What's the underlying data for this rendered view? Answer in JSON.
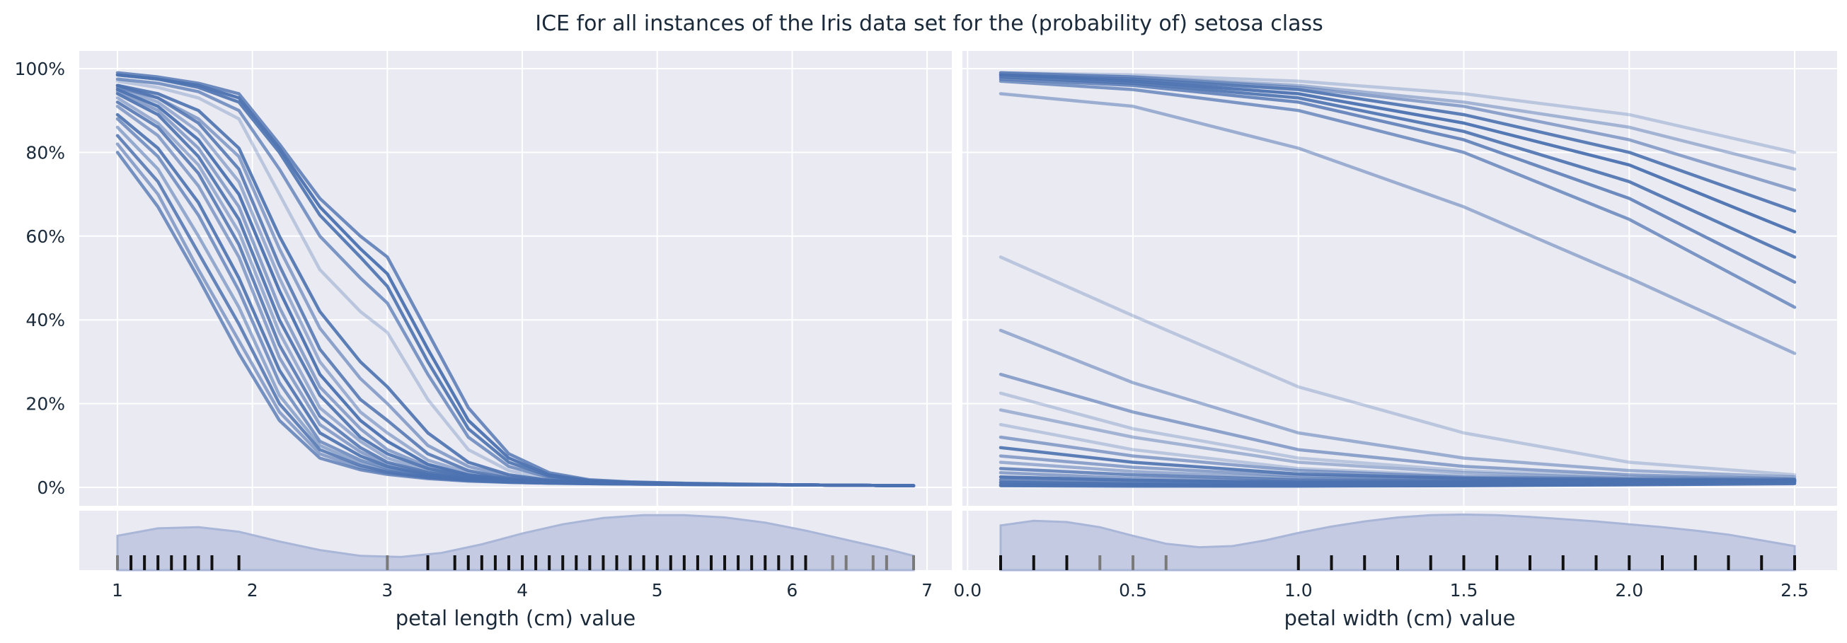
{
  "title": "ICE for all instances of the Iris data set for the (probability of) setosa class",
  "colors": {
    "background": "#eaeaf2",
    "grid": "#ffffff",
    "line": "#4c72b0",
    "kde_fill": "#c3cae1",
    "rug_dark": "#111111",
    "rug_light": "#7a7a7a"
  },
  "chart_data": [
    {
      "type": "line",
      "subtype": "ice",
      "xlabel": "petal length (cm) value",
      "ylabel": "",
      "xlim": [
        1,
        6.9
      ],
      "ylim": [
        0,
        1
      ],
      "y_ticks": [
        "0%",
        "20%",
        "40%",
        "60%",
        "80%",
        "100%"
      ],
      "y_tick_values": [
        0,
        0.2,
        0.4,
        0.6,
        0.8,
        1.0
      ],
      "x_ticks": [
        "1",
        "2",
        "3",
        "4",
        "5",
        "6",
        "7"
      ],
      "x_tick_values": [
        1,
        2,
        3,
        4,
        5,
        6,
        7
      ],
      "x": [
        1.0,
        1.3,
        1.6,
        1.9,
        2.2,
        2.5,
        2.8,
        3.0,
        3.3,
        3.6,
        3.9,
        4.2,
        4.5,
        4.8,
        5.2,
        5.6,
        6.0,
        6.4,
        6.9
      ],
      "series": [
        {
          "values": [
            0.99,
            0.98,
            0.965,
            0.94,
            0.82,
            0.69,
            0.6,
            0.55,
            0.37,
            0.19,
            0.08,
            0.035,
            0.018,
            0.013,
            0.01,
            0.008,
            0.006,
            0.005,
            0.004
          ],
          "opacity": 0.8
        },
        {
          "values": [
            0.985,
            0.975,
            0.96,
            0.93,
            0.81,
            0.67,
            0.57,
            0.51,
            0.33,
            0.16,
            0.07,
            0.03,
            0.016,
            0.012,
            0.009,
            0.007,
            0.006,
            0.005,
            0.004
          ],
          "opacity": 0.95
        },
        {
          "values": [
            0.985,
            0.975,
            0.955,
            0.92,
            0.8,
            0.65,
            0.55,
            0.48,
            0.3,
            0.14,
            0.06,
            0.027,
            0.015,
            0.011,
            0.009,
            0.007,
            0.006,
            0.005,
            0.004
          ],
          "opacity": 0.9
        },
        {
          "values": [
            0.975,
            0.965,
            0.945,
            0.9,
            0.76,
            0.6,
            0.5,
            0.44,
            0.27,
            0.12,
            0.05,
            0.024,
            0.014,
            0.011,
            0.008,
            0.007,
            0.006,
            0.005,
            0.004
          ],
          "opacity": 0.7
        },
        {
          "values": [
            0.97,
            0.955,
            0.93,
            0.88,
            0.7,
            0.52,
            0.42,
            0.37,
            0.21,
            0.09,
            0.04,
            0.02,
            0.013,
            0.01,
            0.008,
            0.007,
            0.006,
            0.005,
            0.004
          ],
          "opacity": 0.3
        },
        {
          "values": [
            0.96,
            0.94,
            0.9,
            0.81,
            0.6,
            0.42,
            0.3,
            0.24,
            0.13,
            0.06,
            0.03,
            0.017,
            0.012,
            0.01,
            0.008,
            0.007,
            0.006,
            0.005,
            0.004
          ],
          "opacity": 0.9
        },
        {
          "values": [
            0.955,
            0.93,
            0.88,
            0.79,
            0.57,
            0.38,
            0.26,
            0.2,
            0.1,
            0.05,
            0.026,
            0.016,
            0.012,
            0.01,
            0.008,
            0.007,
            0.006,
            0.005,
            0.004
          ],
          "opacity": 0.6
        },
        {
          "values": [
            0.96,
            0.93,
            0.87,
            0.76,
            0.53,
            0.33,
            0.21,
            0.16,
            0.08,
            0.04,
            0.022,
            0.015,
            0.011,
            0.009,
            0.008,
            0.007,
            0.006,
            0.005,
            0.004
          ],
          "opacity": 0.85
        },
        {
          "values": [
            0.955,
            0.92,
            0.85,
            0.73,
            0.5,
            0.3,
            0.18,
            0.13,
            0.065,
            0.035,
            0.02,
            0.014,
            0.011,
            0.009,
            0.008,
            0.007,
            0.006,
            0.005,
            0.004
          ],
          "opacity": 0.5
        },
        {
          "values": [
            0.95,
            0.91,
            0.83,
            0.7,
            0.47,
            0.27,
            0.16,
            0.11,
            0.055,
            0.03,
            0.019,
            0.013,
            0.01,
            0.009,
            0.008,
            0.007,
            0.006,
            0.005,
            0.004
          ],
          "opacity": 0.95
        },
        {
          "values": [
            0.945,
            0.9,
            0.81,
            0.67,
            0.43,
            0.24,
            0.14,
            0.09,
            0.05,
            0.028,
            0.018,
            0.013,
            0.01,
            0.009,
            0.008,
            0.007,
            0.006,
            0.005,
            0.004
          ],
          "opacity": 0.6
        },
        {
          "values": [
            0.94,
            0.89,
            0.79,
            0.64,
            0.4,
            0.22,
            0.12,
            0.08,
            0.045,
            0.026,
            0.017,
            0.013,
            0.01,
            0.009,
            0.008,
            0.007,
            0.006,
            0.005,
            0.004
          ],
          "opacity": 0.9
        },
        {
          "values": [
            0.93,
            0.87,
            0.77,
            0.61,
            0.37,
            0.19,
            0.11,
            0.07,
            0.04,
            0.024,
            0.016,
            0.012,
            0.01,
            0.009,
            0.008,
            0.007,
            0.006,
            0.005,
            0.004
          ],
          "opacity": 0.5
        },
        {
          "values": [
            0.92,
            0.86,
            0.75,
            0.58,
            0.34,
            0.17,
            0.095,
            0.06,
            0.036,
            0.022,
            0.015,
            0.012,
            0.01,
            0.009,
            0.008,
            0.007,
            0.006,
            0.005,
            0.004
          ],
          "opacity": 0.85
        },
        {
          "values": [
            0.91,
            0.84,
            0.72,
            0.55,
            0.31,
            0.15,
            0.085,
            0.055,
            0.033,
            0.021,
            0.015,
            0.012,
            0.01,
            0.009,
            0.008,
            0.007,
            0.006,
            0.005,
            0.004
          ],
          "opacity": 0.6
        },
        {
          "values": [
            0.89,
            0.81,
            0.68,
            0.5,
            0.28,
            0.13,
            0.075,
            0.05,
            0.03,
            0.02,
            0.014,
            0.011,
            0.01,
            0.009,
            0.008,
            0.007,
            0.006,
            0.005,
            0.004
          ],
          "opacity": 0.9
        },
        {
          "values": [
            0.88,
            0.79,
            0.65,
            0.47,
            0.25,
            0.11,
            0.065,
            0.045,
            0.028,
            0.019,
            0.014,
            0.011,
            0.01,
            0.009,
            0.008,
            0.007,
            0.006,
            0.005,
            0.004
          ],
          "opacity": 0.7
        },
        {
          "values": [
            0.86,
            0.76,
            0.6,
            0.43,
            0.22,
            0.1,
            0.058,
            0.04,
            0.026,
            0.018,
            0.013,
            0.011,
            0.01,
            0.009,
            0.008,
            0.007,
            0.006,
            0.005,
            0.004
          ],
          "opacity": 0.55
        },
        {
          "values": [
            0.84,
            0.73,
            0.56,
            0.39,
            0.2,
            0.09,
            0.052,
            0.037,
            0.024,
            0.017,
            0.013,
            0.011,
            0.009,
            0.008,
            0.007,
            0.006,
            0.006,
            0.005,
            0.004
          ],
          "opacity": 0.85
        },
        {
          "values": [
            0.82,
            0.7,
            0.52,
            0.35,
            0.18,
            0.08,
            0.047,
            0.034,
            0.023,
            0.016,
            0.012,
            0.01,
            0.009,
            0.008,
            0.007,
            0.006,
            0.006,
            0.005,
            0.004
          ],
          "opacity": 0.6
        },
        {
          "values": [
            0.8,
            0.67,
            0.5,
            0.32,
            0.16,
            0.07,
            0.042,
            0.031,
            0.021,
            0.015,
            0.012,
            0.01,
            0.009,
            0.008,
            0.007,
            0.006,
            0.006,
            0.005,
            0.004
          ],
          "opacity": 0.75
        }
      ],
      "kde": {
        "x": [
          1.0,
          1.3,
          1.6,
          1.9,
          2.2,
          2.5,
          2.8,
          3.1,
          3.4,
          3.7,
          4.0,
          4.3,
          4.6,
          4.9,
          5.2,
          5.5,
          5.8,
          6.1,
          6.4,
          6.7,
          6.9
        ],
        "density": [
          0.6,
          0.73,
          0.75,
          0.67,
          0.5,
          0.35,
          0.25,
          0.23,
          0.3,
          0.45,
          0.64,
          0.8,
          0.91,
          0.96,
          0.96,
          0.92,
          0.83,
          0.69,
          0.53,
          0.37,
          0.25
        ]
      },
      "rug": {
        "dark": [
          1.1,
          1.2,
          1.3,
          1.4,
          1.5,
          1.6,
          1.7,
          1.9,
          3.3,
          3.5,
          3.6,
          3.7,
          3.8,
          3.9,
          4.0,
          4.1,
          4.2,
          4.3,
          4.4,
          4.5,
          4.6,
          4.7,
          4.8,
          4.9,
          5.0,
          5.1,
          5.2,
          5.3,
          5.4,
          5.5,
          5.6,
          5.7,
          5.8,
          5.9,
          6.0,
          6.1
        ],
        "light": [
          1.0,
          3.0,
          6.3,
          6.4,
          6.6,
          6.7,
          6.9
        ]
      }
    },
    {
      "type": "line",
      "subtype": "ice",
      "xlabel": "petal width (cm) value",
      "ylabel": "",
      "xlim": [
        0.1,
        2.5
      ],
      "ylim": [
        0,
        1
      ],
      "x_ticks": [
        "0.0",
        "0.5",
        "1.0",
        "1.5",
        "2.0",
        "2.5"
      ],
      "x_tick_values": [
        0.0,
        0.5,
        1.0,
        1.5,
        2.0,
        2.5
      ],
      "x": [
        0.1,
        0.5,
        1.0,
        1.5,
        2.0,
        2.5
      ],
      "series": [
        {
          "values": [
            0.99,
            0.985,
            0.97,
            0.94,
            0.89,
            0.8
          ],
          "opacity": 0.3
        },
        {
          "values": [
            0.99,
            0.98,
            0.96,
            0.92,
            0.86,
            0.76
          ],
          "opacity": 0.45
        },
        {
          "values": [
            0.99,
            0.98,
            0.955,
            0.91,
            0.83,
            0.71
          ],
          "opacity": 0.6
        },
        {
          "values": [
            0.985,
            0.975,
            0.95,
            0.89,
            0.8,
            0.66
          ],
          "opacity": 0.9
        },
        {
          "values": [
            0.985,
            0.97,
            0.94,
            0.87,
            0.77,
            0.61
          ],
          "opacity": 0.95
        },
        {
          "values": [
            0.98,
            0.965,
            0.93,
            0.85,
            0.73,
            0.55
          ],
          "opacity": 0.9
        },
        {
          "values": [
            0.975,
            0.96,
            0.92,
            0.83,
            0.69,
            0.49
          ],
          "opacity": 0.8
        },
        {
          "values": [
            0.97,
            0.95,
            0.9,
            0.8,
            0.64,
            0.43
          ],
          "opacity": 0.7
        },
        {
          "values": [
            0.94,
            0.91,
            0.81,
            0.67,
            0.5,
            0.32
          ],
          "opacity": 0.5
        },
        {
          "values": [
            0.55,
            0.41,
            0.24,
            0.13,
            0.06,
            0.03
          ],
          "opacity": 0.3
        },
        {
          "values": [
            0.375,
            0.25,
            0.13,
            0.07,
            0.04,
            0.025
          ],
          "opacity": 0.5
        },
        {
          "values": [
            0.27,
            0.18,
            0.09,
            0.05,
            0.03,
            0.02
          ],
          "opacity": 0.6
        },
        {
          "values": [
            0.225,
            0.14,
            0.07,
            0.04,
            0.025,
            0.02
          ],
          "opacity": 0.3
        },
        {
          "values": [
            0.185,
            0.12,
            0.06,
            0.035,
            0.022,
            0.018
          ],
          "opacity": 0.45
        },
        {
          "values": [
            0.15,
            0.09,
            0.045,
            0.028,
            0.02,
            0.017
          ],
          "opacity": 0.3
        },
        {
          "values": [
            0.12,
            0.075,
            0.04,
            0.025,
            0.02,
            0.016
          ],
          "opacity": 0.6
        },
        {
          "values": [
            0.095,
            0.06,
            0.032,
            0.022,
            0.018,
            0.016
          ],
          "opacity": 0.9
        },
        {
          "values": [
            0.075,
            0.048,
            0.027,
            0.02,
            0.017,
            0.016
          ],
          "opacity": 0.6
        },
        {
          "values": [
            0.06,
            0.038,
            0.022,
            0.017,
            0.016,
            0.016
          ],
          "opacity": 0.5
        },
        {
          "values": [
            0.045,
            0.03,
            0.018,
            0.015,
            0.015,
            0.015
          ],
          "opacity": 0.8
        },
        {
          "values": [
            0.035,
            0.022,
            0.014,
            0.013,
            0.014,
            0.015
          ],
          "opacity": 0.6
        },
        {
          "values": [
            0.025,
            0.017,
            0.012,
            0.012,
            0.014,
            0.016
          ],
          "opacity": 0.95
        },
        {
          "values": [
            0.018,
            0.012,
            0.009,
            0.01,
            0.013,
            0.018
          ],
          "opacity": 0.8
        },
        {
          "values": [
            0.012,
            0.008,
            0.006,
            0.007,
            0.01,
            0.014
          ],
          "opacity": 0.95
        },
        {
          "values": [
            0.007,
            0.005,
            0.004,
            0.005,
            0.008,
            0.012
          ],
          "opacity": 0.85
        },
        {
          "values": [
            0.004,
            0.003,
            0.003,
            0.004,
            0.006,
            0.009
          ],
          "opacity": 0.95
        }
      ],
      "kde": {
        "x": [
          0.1,
          0.2,
          0.3,
          0.4,
          0.5,
          0.6,
          0.7,
          0.8,
          0.9,
          1.0,
          1.1,
          1.2,
          1.3,
          1.4,
          1.5,
          1.6,
          1.7,
          1.8,
          1.9,
          2.0,
          2.1,
          2.2,
          2.3,
          2.4,
          2.5
        ],
        "density": [
          0.78,
          0.86,
          0.84,
          0.75,
          0.6,
          0.46,
          0.4,
          0.42,
          0.52,
          0.65,
          0.76,
          0.85,
          0.92,
          0.96,
          0.97,
          0.96,
          0.93,
          0.89,
          0.85,
          0.8,
          0.75,
          0.69,
          0.62,
          0.52,
          0.42
        ]
      },
      "rug": {
        "dark": [
          0.1,
          0.2,
          0.3,
          1.0,
          1.1,
          1.2,
          1.3,
          1.4,
          1.5,
          1.6,
          1.7,
          1.8,
          1.9,
          2.0,
          2.1,
          2.2,
          2.3,
          2.4,
          2.5
        ],
        "light": [
          0.4,
          0.5,
          0.6
        ]
      }
    }
  ]
}
